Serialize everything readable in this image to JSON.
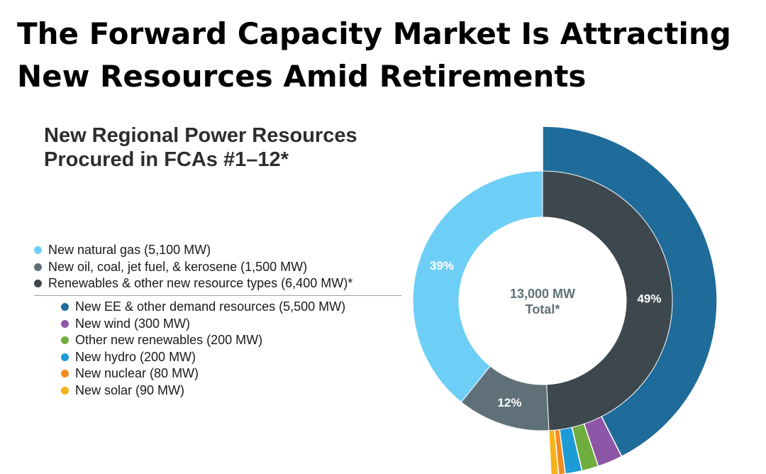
{
  "slide": {
    "title": "The Forward Capacity Market Is Attracting New Resources Amid Retirements"
  },
  "chart_data": {
    "type": "pie",
    "variant": "nested-donut",
    "title": "New Regional Power Resources Procured in FCAs #1–12*",
    "center_label": {
      "value": "13,000 MW",
      "caption": "Total*"
    },
    "inner_ring": [
      {
        "label": "Renewables & other new resource types (6,400 MW)*",
        "value": 6400,
        "percent_label": "49%",
        "color": "#3d474e"
      },
      {
        "label": "New oil, coal, jet fuel, & kerosene (1,500 MW)",
        "value": 1500,
        "percent_label": "12%",
        "color": "#5f7078"
      },
      {
        "label": "New natural  gas (5,100 MW)",
        "value": 5100,
        "percent_label": "39%",
        "color": "#6ecff6"
      }
    ],
    "outer_ring": {
      "parent": "Renewables & other new resource types (6,400 MW)*",
      "segments": [
        {
          "label": "New EE & other demand resources (5,500 MW)",
          "value": 5500,
          "color": "#1f6b9a"
        },
        {
          "label": "New wind (300 MW)",
          "value": 300,
          "color": "#8e56a6"
        },
        {
          "label": "Other new renewables (200 MW)",
          "value": 200,
          "color": "#6fae3e"
        },
        {
          "label": "New hydro (200 MW)",
          "value": 200,
          "color": "#1d9bd6"
        },
        {
          "label": "New nuclear (80 MW)",
          "value": 80,
          "color": "#f28b1e"
        },
        {
          "label": "New solar (90 MW)",
          "value": 90,
          "color": "#f6b21b"
        }
      ]
    },
    "legend_order": [
      {
        "label": "New natural  gas (5,100 MW)",
        "color": "#6ecff6",
        "level": "main"
      },
      {
        "label": "New oil, coal, jet fuel, & kerosene (1,500 MW)",
        "color": "#5f7078",
        "level": "main"
      },
      {
        "label": "Renewables & other new resource types (6,400 MW)*",
        "color": "#3d474e",
        "level": "main"
      },
      {
        "label": "New EE & other demand resources (5,500 MW)",
        "color": "#1f6b9a",
        "level": "sub"
      },
      {
        "label": "New wind (300 MW)",
        "color": "#8e56a6",
        "level": "sub"
      },
      {
        "label": "Other new renewables (200 MW)",
        "color": "#6fae3e",
        "level": "sub"
      },
      {
        "label": "New hydro (200 MW)",
        "color": "#1d9bd6",
        "level": "sub"
      },
      {
        "label": "New nuclear (80 MW)",
        "color": "#f28b1e",
        "level": "sub"
      },
      {
        "label": "New solar (90 MW)",
        "color": "#f6b21b",
        "level": "sub"
      }
    ]
  }
}
